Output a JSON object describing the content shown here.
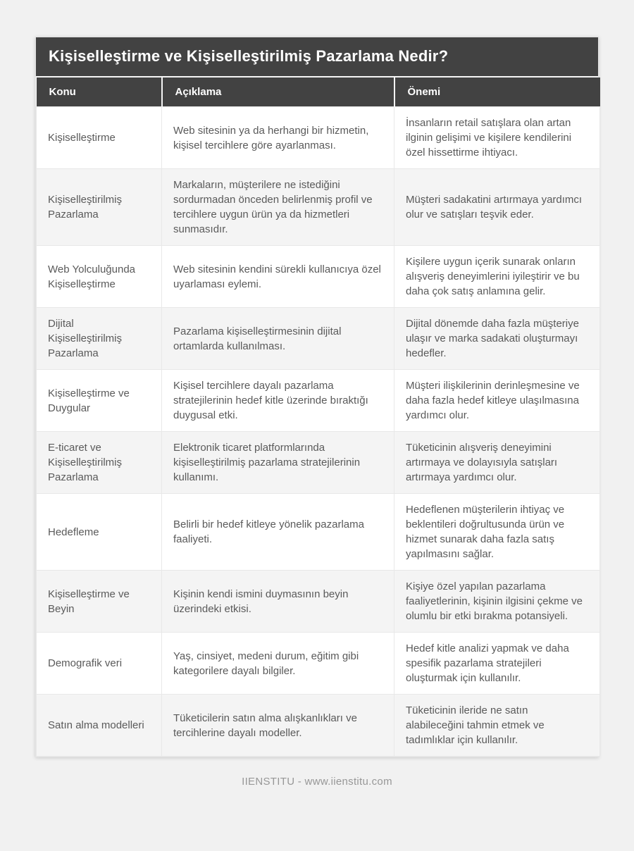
{
  "page": {
    "title": "Kişiselleştirme ve Kişiselleştirilmiş Pazarlama Nedir?",
    "footer": "IIENSTITU - www.iienstitu.com"
  },
  "colors": {
    "page_background": "#f1f1f1",
    "header_background": "#424242",
    "header_text": "#ffffff",
    "body_text": "#5a5a5a",
    "row_stripe": "#f4f4f4",
    "cell_border": "#e8e8e8"
  },
  "table": {
    "headers": [
      "Konu",
      "Açıklama",
      "Önemi"
    ],
    "rows": [
      {
        "konu": "Kişiselleştirme",
        "aciklama": "Web sitesinin ya da herhangi bir hizmetin, kişisel tercihlere göre ayarlanması.",
        "onemi": "İnsanların retail satışlara olan artan ilginin gelişimi ve kişilere kendilerini özel hissettirme ihtiyacı."
      },
      {
        "konu": "Kişiselleştirilmiş Pazarlama",
        "aciklama": "Markaların, müşterilere ne istediğini sordurmadan önceden belirlenmiş profil ve tercihlere uygun ürün ya da hizmetleri sunmasıdır.",
        "onemi": "Müşteri sadakatini artırmaya yardımcı olur ve satışları teşvik eder."
      },
      {
        "konu": "Web Yolculuğunda Kişiselleştirme",
        "aciklama": "Web sitesinin kendini sürekli kullanıcıya özel uyarlaması eylemi.",
        "onemi": "Kişilere uygun içerik sunarak onların alışveriş deneyimlerini iyileştirir ve bu daha çok satış anlamına gelir."
      },
      {
        "konu": "Dijital Kişiselleştirilmiş Pazarlama",
        "aciklama": "Pazarlama kişiselleştirmesinin dijital ortamlarda kullanılması.",
        "onemi": "Dijital dönemde daha fazla müşteriye ulaşır ve marka sadakati oluşturmayı hedefler."
      },
      {
        "konu": "Kişiselleştirme ve Duygular",
        "aciklama": "Kişisel tercihlere dayalı pazarlama stratejilerinin hedef kitle üzerinde bıraktığı duygusal etki.",
        "onemi": "Müşteri ilişkilerinin derinleşmesine ve daha fazla hedef kitleye ulaşılmasına yardımcı olur."
      },
      {
        "konu": "E-ticaret ve Kişiselleştirilmiş Pazarlama",
        "aciklama": "Elektronik ticaret platformlarında kişiselleştirilmiş pazarlama stratejilerinin kullanımı.",
        "onemi": "Tüketicinin alışveriş deneyimini artırmaya ve dolayısıyla satışları artırmaya yardımcı olur."
      },
      {
        "konu": "Hedefleme",
        "aciklama": "Belirli bir hedef kitleye yönelik pazarlama faaliyeti.",
        "onemi": "Hedeflenen müşterilerin ihtiyaç ve beklentileri doğrultusunda ürün ve hizmet sunarak daha fazla satış yapılmasını sağlar."
      },
      {
        "konu": "Kişiselleştirme ve Beyin",
        "aciklama": "Kişinin kendi ismini duymasının beyin üzerindeki etkisi.",
        "onemi": "Kişiye özel yapılan pazarlama faaliyetlerinin, kişinin ilgisini çekme ve olumlu bir etki bırakma potansiyeli."
      },
      {
        "konu": "Demografik veri",
        "aciklama": "Yaş, cinsiyet, medeni durum, eğitim gibi kategorilere dayalı bilgiler.",
        "onemi": "Hedef kitle analizi yapmak ve daha spesifik pazarlama stratejileri oluşturmak için kullanılır."
      },
      {
        "konu": "Satın alma modelleri",
        "aciklama": "Tüketicilerin satın alma alışkanlıkları ve tercihlerine dayalı modeller.",
        "onemi": "Tüketicinin ileride ne satın alabileceğini tahmin etmek ve tadımlıklar için kullanılır."
      }
    ]
  }
}
